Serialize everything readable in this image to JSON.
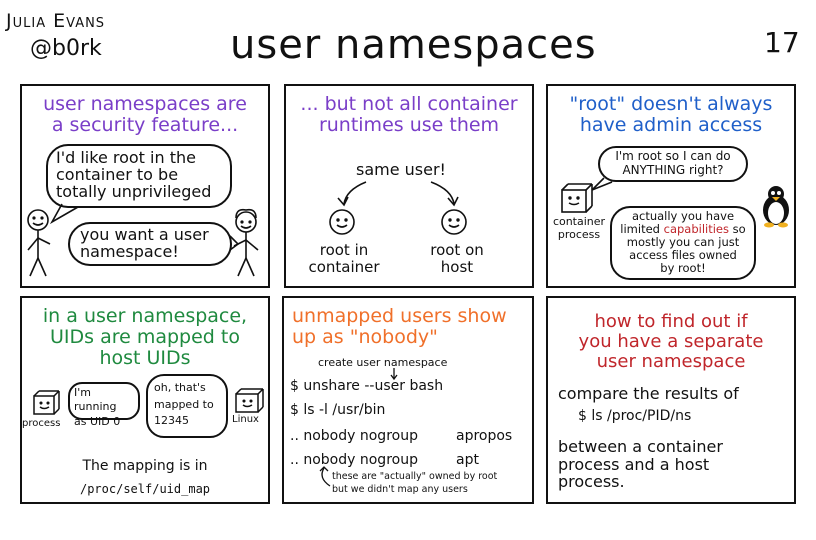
{
  "header": {
    "author": "Julia Evans",
    "handle": "@b0rk",
    "title": "user namespaces",
    "page": "17"
  },
  "panel1": {
    "title_l1": "user namespaces are",
    "title_l2": "a security feature...",
    "bubble1_l1": "I'd like root in the",
    "bubble1_l2": "container to be",
    "bubble1_l3": "totally unprivileged",
    "bubble2_l1": "you want a user",
    "bubble2_l2": "namespace!"
  },
  "panel2": {
    "title_l1": "... but not all container",
    "title_l2": "runtimes use them",
    "same_user": "same user!",
    "left_l1": "root in",
    "left_l2": "container",
    "right_l1": "root on",
    "right_l2": "host"
  },
  "panel3": {
    "title_l1": "\"root\" doesn't always",
    "title_l2": "have admin access",
    "bubble1_l1": "I'm root so I can do",
    "bubble1_l2": "ANYTHING right?",
    "box_label_l1": "container",
    "box_label_l2": "process",
    "bubble2_l1": "actually you have",
    "bubble2_l2_pre": "limited",
    "bubble2_l2_hl": "capabilities",
    "bubble2_l2_post": "so",
    "bubble2_l3": "mostly you can just",
    "bubble2_l4": "access files owned",
    "bubble2_l5": "by root!"
  },
  "panel4": {
    "title_l1": "in a user namespace,",
    "title_l2": "UIDs are mapped to",
    "title_l3": "host UIDs",
    "left_label": "process",
    "bubble1_l1": "I'm running",
    "bubble1_l2": "as UID 0",
    "bubble2_l1": "oh, that's",
    "bubble2_l2": "mapped to",
    "bubble2_l3": "12345",
    "right_label": "Linux",
    "mapping_text": "The mapping is in",
    "mapping_path": "/proc/self/uid_map"
  },
  "panel5": {
    "title_l1": "unmapped users show",
    "title_l2": "up as \"nobody\"",
    "annotation": "create user namespace",
    "cmd1": "$ unshare --user bash",
    "cmd2": "$ ls -l /usr/bin",
    "row1_a": ".. nobody nogroup",
    "row1_b": "apropos",
    "row2_a": ".. nobody nogroup",
    "row2_b": "apt",
    "note_l1": "these are \"actually\" owned by root",
    "note_l2": "but we didn't map any users"
  },
  "panel6": {
    "title_l1": "how to find out if",
    "title_l2": "you have a separate",
    "title_l3": "user namespace",
    "compare": "compare the results of",
    "cmd": "$ ls /proc/PID/ns",
    "between_l1": "between a container",
    "between_l2": "process and a host",
    "between_l3": "process."
  },
  "colors": {
    "purple": "#7a3ec8",
    "blue": "#1f5fc9",
    "green": "#1f8a3f",
    "orange": "#f0702a",
    "red": "#c0262b"
  }
}
